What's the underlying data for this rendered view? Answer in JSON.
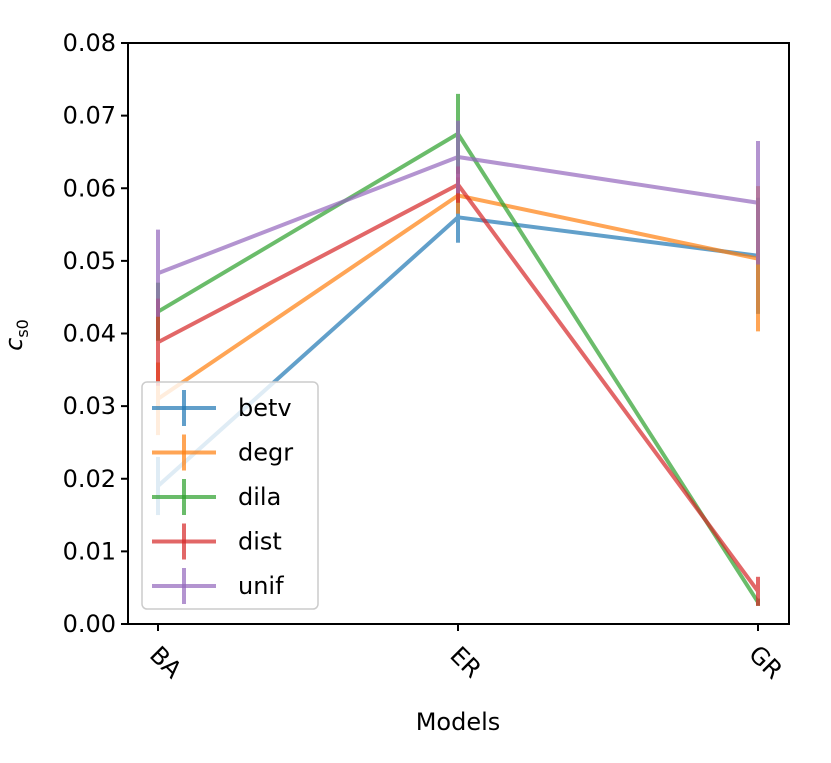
{
  "chart_data": {
    "type": "line",
    "title": "",
    "xlabel": "Models",
    "ylabel": "c_s0",
    "ylabel_main": "c",
    "ylabel_sub": "s0",
    "categories": [
      "BA",
      "ER",
      "GR"
    ],
    "ylim": [
      0.0,
      0.08
    ],
    "yticks": [
      "0.00",
      "0.01",
      "0.02",
      "0.03",
      "0.04",
      "0.05",
      "0.06",
      "0.07",
      "0.08"
    ],
    "grid": false,
    "legend_position": "lower-left",
    "series": [
      {
        "name": "betv",
        "color": "#1f77b4",
        "values": [
          0.019,
          0.056,
          0.0507
        ],
        "errors": [
          0.004,
          0.0035,
          0.008
        ]
      },
      {
        "name": "degr",
        "color": "#ff7f0e",
        "values": [
          0.031,
          0.059,
          0.0503
        ],
        "errors": [
          0.005,
          0.0025,
          0.01
        ]
      },
      {
        "name": "dila",
        "color": "#2ca02c",
        "values": [
          0.043,
          0.0675,
          0.003
        ],
        "errors": [
          0.004,
          0.0055,
          0.0005
        ]
      },
      {
        "name": "dist",
        "color": "#d62728",
        "values": [
          0.0388,
          0.0605,
          0.0045
        ],
        "errors": [
          0.006,
          0.0025,
          0.002
        ]
      },
      {
        "name": "unif",
        "color": "#9467bd",
        "values": [
          0.0483,
          0.0643,
          0.058
        ],
        "errors": [
          0.006,
          0.005,
          0.0085
        ]
      }
    ]
  }
}
